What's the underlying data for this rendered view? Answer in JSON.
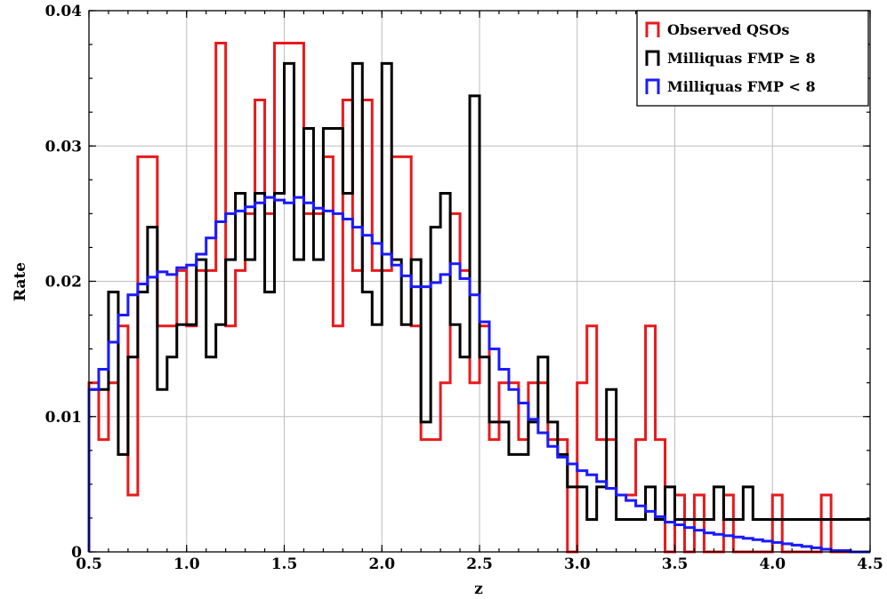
{
  "chart_data": {
    "type": "step-histogram",
    "xlabel": "z",
    "ylabel": "Rate",
    "xlim": [
      0.5,
      4.5
    ],
    "ylim": [
      0,
      0.04
    ],
    "xticks": [
      "0.5",
      "1.0",
      "1.5",
      "2.0",
      "2.5",
      "3.0",
      "3.5",
      "4.0",
      "4.5"
    ],
    "yticks": [
      "0",
      "0.01",
      "0.02",
      "0.03",
      "0.04"
    ],
    "grid": true,
    "legend_position": "top-right",
    "bin_width": 0.05,
    "bin_start": 0.5,
    "series": [
      {
        "name": "Observed QSOs",
        "color": "#e8191c",
        "values": [
          0.0125,
          0.0083,
          0.0125,
          0.0167,
          0.0042,
          0.0292,
          0.0292,
          0.0167,
          0.0167,
          0.0208,
          0.0167,
          0.0208,
          0.0208,
          0.0376,
          0.0167,
          0.0208,
          0.025,
          0.0334,
          0.025,
          0.0376,
          0.0376,
          0.0376,
          0.025,
          0.025,
          0.0292,
          0.0167,
          0.0334,
          0.0208,
          0.0334,
          0.0208,
          0.0208,
          0.0292,
          0.0292,
          0.0167,
          0.0083,
          0.0083,
          0.0125,
          0.025,
          0.0208,
          0.0125,
          0.0167,
          0.0083,
          0.0125,
          0.0125,
          0.0083,
          0.0125,
          0.0125,
          0.0083,
          0.0083,
          0.0,
          0.0125,
          0.0167,
          0.0083,
          0.0083,
          0.0042,
          0.0042,
          0.0083,
          0.0167,
          0.0083,
          0.0,
          0.0042,
          0.0,
          0.0042,
          0.0,
          0.0,
          0.0042,
          0.0,
          0.0,
          0.0,
          0.0,
          0.0042,
          0.0,
          0.0,
          0.0,
          0.0,
          0.0042,
          0.0,
          0.0,
          0.0,
          0.0
        ]
      },
      {
        "name": "Milliquas FMP ≥ 8",
        "color": "#000000",
        "values": [
          0.012,
          0.012,
          0.0192,
          0.0072,
          0.0144,
          0.0192,
          0.024,
          0.012,
          0.0144,
          0.0168,
          0.0168,
          0.0216,
          0.0144,
          0.0168,
          0.0216,
          0.0265,
          0.0216,
          0.0265,
          0.0192,
          0.0265,
          0.0361,
          0.0216,
          0.0313,
          0.0216,
          0.0313,
          0.0313,
          0.0265,
          0.0361,
          0.0192,
          0.0168,
          0.0361,
          0.0216,
          0.0168,
          0.0216,
          0.0096,
          0.024,
          0.0265,
          0.0168,
          0.0144,
          0.0337,
          0.0144,
          0.0096,
          0.0096,
          0.0072,
          0.0072,
          0.0096,
          0.0144,
          0.0096,
          0.0072,
          0.0048,
          0.0048,
          0.0024,
          0.0048,
          0.012,
          0.0024,
          0.0024,
          0.0024,
          0.0048,
          0.0024,
          0.0048,
          0.0024,
          0.0024,
          0.0024,
          0.0024,
          0.0048,
          0.0024,
          0.0024,
          0.0048,
          0.0024,
          0.0024,
          0.0024,
          0.0024,
          0.0024,
          0.0024,
          0.0024,
          0.0024,
          0.0024,
          0.0024,
          0.0024,
          0.0024
        ]
      },
      {
        "name": "Milliquas FMP < 8",
        "color": "#1a1aff",
        "values": [
          0.012,
          0.0135,
          0.0155,
          0.0175,
          0.019,
          0.0198,
          0.0203,
          0.0207,
          0.0205,
          0.021,
          0.0212,
          0.022,
          0.0232,
          0.0244,
          0.025,
          0.0252,
          0.0255,
          0.0258,
          0.0262,
          0.026,
          0.0258,
          0.0262,
          0.0258,
          0.0254,
          0.0252,
          0.025,
          0.0246,
          0.024,
          0.0234,
          0.0228,
          0.022,
          0.0212,
          0.0204,
          0.0196,
          0.0196,
          0.0199,
          0.0205,
          0.0213,
          0.0202,
          0.019,
          0.017,
          0.015,
          0.0135,
          0.012,
          0.011,
          0.0098,
          0.0088,
          0.0078,
          0.007,
          0.0065,
          0.006,
          0.0057,
          0.0052,
          0.0047,
          0.0042,
          0.0038,
          0.0034,
          0.003,
          0.0026,
          0.0022,
          0.002,
          0.0018,
          0.0016,
          0.0014,
          0.0013,
          0.0012,
          0.0011,
          0.001,
          0.0009,
          0.0008,
          0.0007,
          0.0006,
          0.0005,
          0.0004,
          0.0003,
          0.0002,
          0.0001,
          0.0001,
          0.0,
          0.0
        ]
      }
    ]
  }
}
